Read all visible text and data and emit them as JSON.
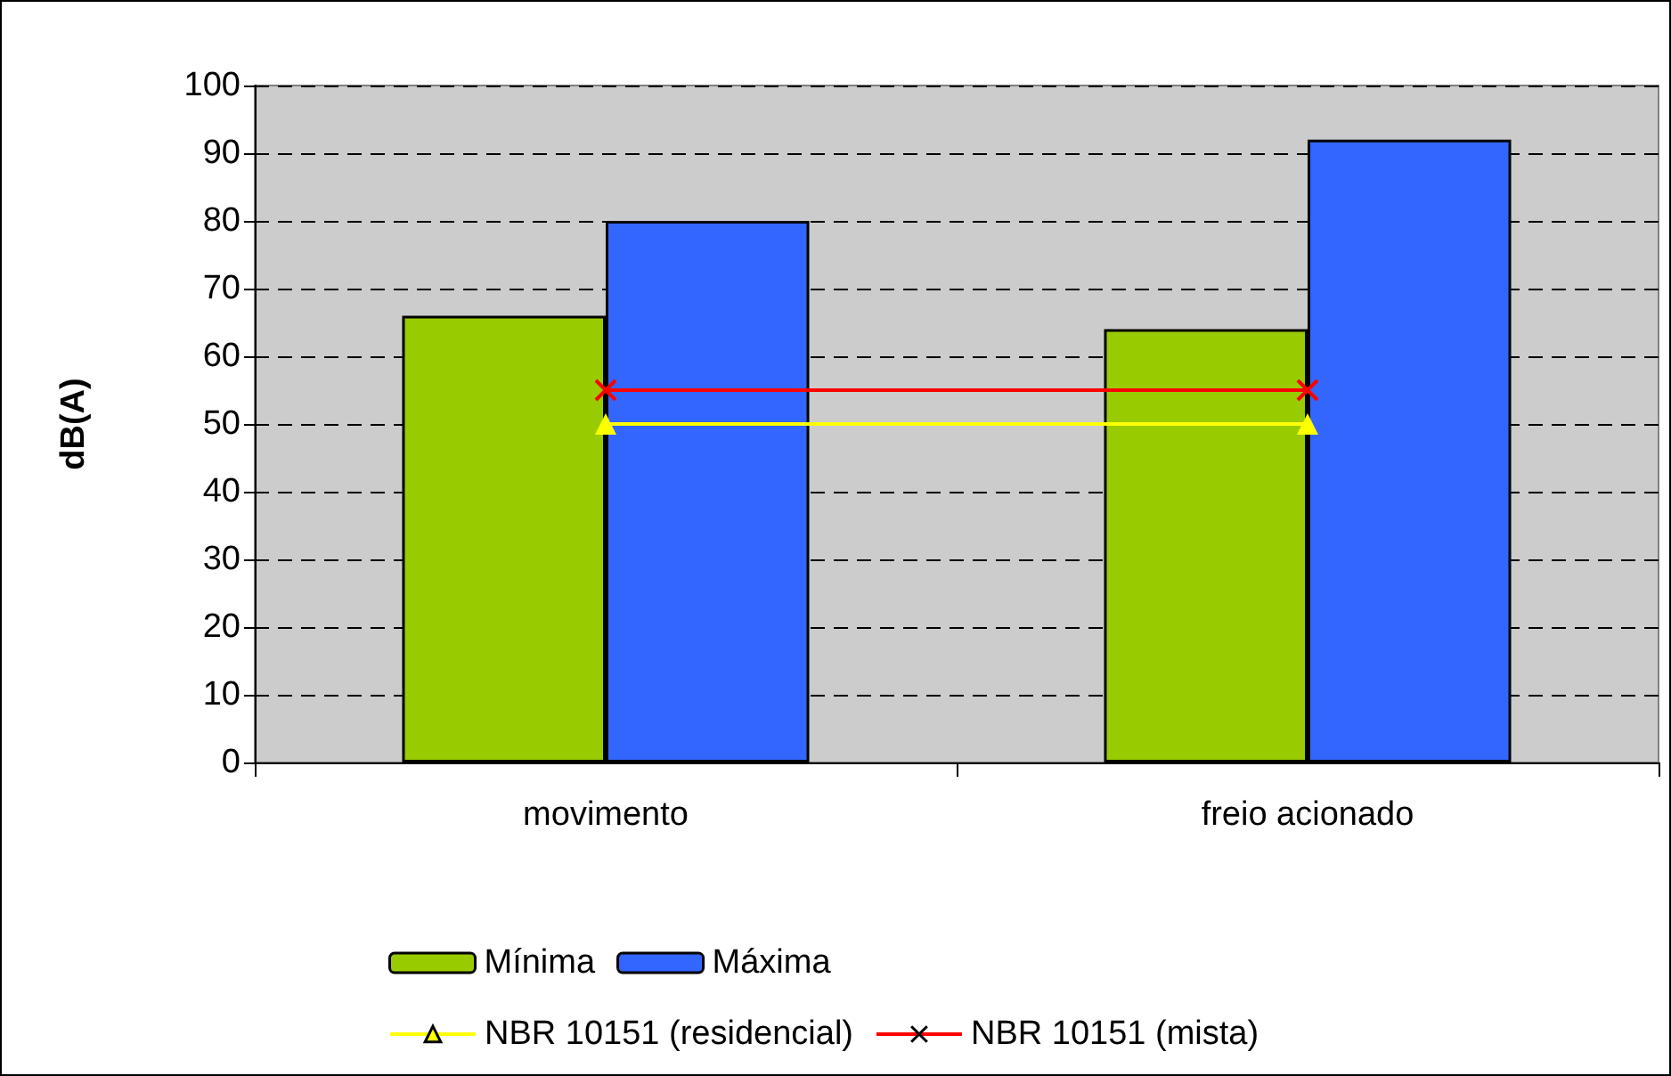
{
  "chart_data": {
    "type": "bar",
    "ylabel": "dB(A)",
    "categories": [
      "movimento",
      "freio acionado"
    ],
    "series": [
      {
        "name": "Mínima",
        "color": "#99cc00",
        "values": [
          66,
          64
        ]
      },
      {
        "name": "Máxima",
        "color": "#3366ff",
        "values": [
          80,
          92
        ]
      },
      {
        "name": "NBR 10151 (residencial)",
        "type": "line",
        "color": "#ffff00",
        "marker": "triangle",
        "values": [
          50,
          50
        ]
      },
      {
        "name": "NBR 10151 (mista)",
        "type": "line",
        "color": "#ff0000",
        "marker": "cross",
        "values": [
          55,
          55
        ]
      }
    ],
    "ylim": [
      0,
      100
    ],
    "yticks": [
      0,
      10,
      20,
      30,
      40,
      50,
      60,
      70,
      80,
      90,
      100
    ],
    "grid": "y",
    "legend": "bottom"
  }
}
